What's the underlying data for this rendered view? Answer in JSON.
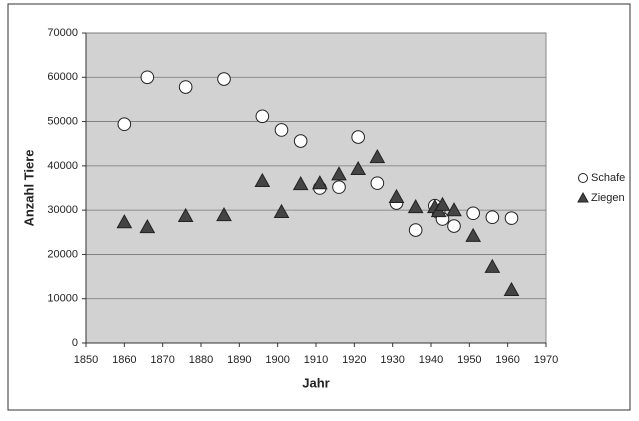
{
  "chart_data": {
    "type": "scatter",
    "xlabel": "Jahr",
    "ylabel": "Anzahl Tiere",
    "xlim": [
      1850,
      1970
    ],
    "xticks": [
      1850,
      1860,
      1870,
      1880,
      1890,
      1900,
      1910,
      1920,
      1930,
      1940,
      1950,
      1960,
      1970
    ],
    "ylim": [
      0,
      70000
    ],
    "yticks": [
      0,
      10000,
      20000,
      30000,
      40000,
      50000,
      60000,
      70000
    ],
    "grid": true,
    "legend": "right",
    "series": [
      {
        "name": "Schafe",
        "marker": "circle",
        "color": "#ffffff",
        "x": [
          1860,
          1866,
          1876,
          1886,
          1896,
          1901,
          1906,
          1911,
          1916,
          1921,
          1926,
          1931,
          1936,
          1941,
          1942,
          1943,
          1946,
          1951,
          1956,
          1961
        ],
        "values": [
          49400,
          60000,
          57800,
          59600,
          51200,
          48100,
          45600,
          35000,
          35200,
          46500,
          36100,
          31600,
          25500,
          31000,
          29500,
          28000,
          26400,
          29300,
          28400,
          28200
        ]
      },
      {
        "name": "Ziegen",
        "marker": "triangle",
        "color": "#444444",
        "x": [
          1860,
          1866,
          1876,
          1886,
          1896,
          1901,
          1906,
          1911,
          1916,
          1921,
          1926,
          1931,
          1936,
          1941,
          1942,
          1943,
          1946,
          1951,
          1956,
          1961
        ],
        "values": [
          27300,
          26200,
          28700,
          28900,
          36600,
          29600,
          35900,
          36100,
          38100,
          39300,
          42000,
          33000,
          30700,
          30700,
          29800,
          31200,
          30000,
          24200,
          17200,
          12000
        ]
      }
    ]
  }
}
